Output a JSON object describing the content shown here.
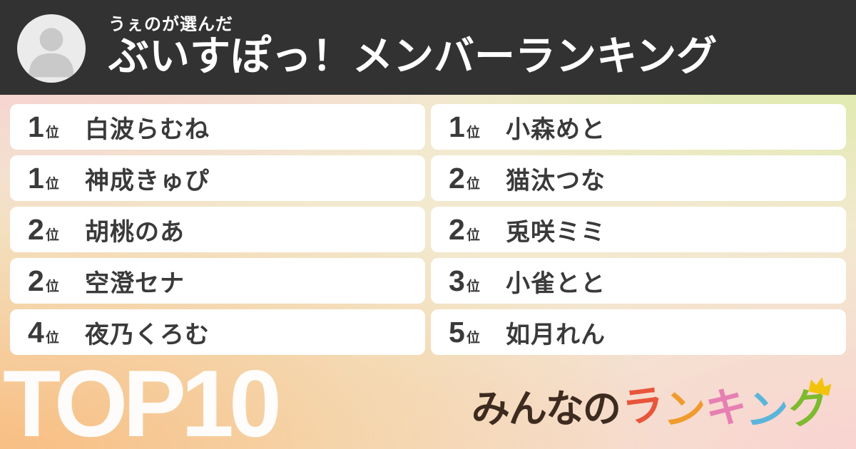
{
  "header": {
    "subtitle": "うぇのが選んだ",
    "title": "ぶいすぽっ！メンバーランキング"
  },
  "ranking": {
    "rank_suffix": "位",
    "items": [
      {
        "rank": "1",
        "name": "白波らむね"
      },
      {
        "rank": "1",
        "name": "神成きゅぴ"
      },
      {
        "rank": "2",
        "name": "胡桃のあ"
      },
      {
        "rank": "2",
        "name": "空澄セナ"
      },
      {
        "rank": "4",
        "name": "夜乃くろむ"
      },
      {
        "rank": "1",
        "name": "小森めと"
      },
      {
        "rank": "2",
        "name": "猫汰つな"
      },
      {
        "rank": "2",
        "name": "兎咲ミミ"
      },
      {
        "rank": "3",
        "name": "小雀とと"
      },
      {
        "rank": "5",
        "name": "如月れん"
      }
    ]
  },
  "footer": {
    "top_label": "TOP10",
    "logo": {
      "prefix": "みんなの",
      "prefix_color": "#3d2b20",
      "colored_chars": [
        {
          "char": "ラ",
          "color": "#e8553a"
        },
        {
          "char": "ン",
          "color": "#f09b2d"
        },
        {
          "char": "キ",
          "color": "#e77fb2"
        },
        {
          "char": "ン",
          "color": "#5bb5da"
        },
        {
          "char": "グ",
          "color": "#7dba2f"
        }
      ],
      "crown_color": "#f3c30c"
    }
  },
  "colors": {
    "header_bg": "#323232",
    "card_bg": "#ffffff",
    "text_dark": "#3a3a3a",
    "top_label": "#ffffff",
    "avatar_bg": "#ebebeb",
    "avatar_person": "#c9c9c9",
    "bg_top_left": "#f8c7d0",
    "bg_top_right": "#d4ec9a",
    "bg_bottom_left": "#f8be82",
    "bg_bottom_right": "#f9d3d1",
    "bg_base": "#f2e9cf"
  }
}
